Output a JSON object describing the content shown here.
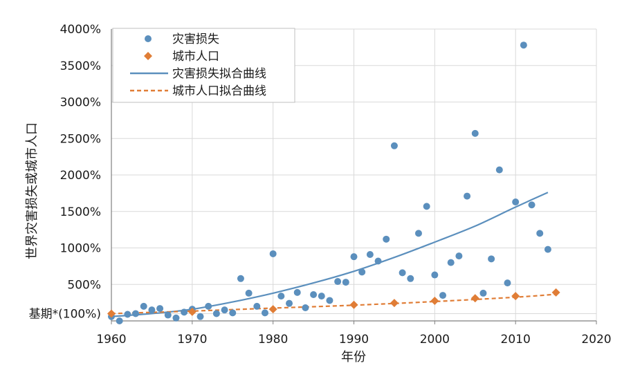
{
  "chart_data": {
    "type": "scatter",
    "title": "",
    "xlabel": "年份",
    "ylabel": "世界灾害损失或城市人口",
    "xlim": [
      1960,
      2020
    ],
    "ylim": [
      0,
      4000
    ],
    "x_ticks": [
      1960,
      1970,
      1980,
      1990,
      2000,
      2010,
      2020
    ],
    "x_tick_labels": [
      "1960",
      "1970",
      "1980",
      "1990",
      "2000",
      "2010",
      "2020"
    ],
    "y_ticks": [
      100,
      500,
      1000,
      1500,
      2000,
      2500,
      3000,
      3500,
      4000
    ],
    "y_tick_labels": [
      "基期*(100%)",
      "500%",
      "1000%",
      "1500%",
      "2000%",
      "2500%",
      "3000%",
      "3500%",
      "4000%"
    ],
    "grid": true,
    "legend_position": "top-left",
    "colors": {
      "disaster": "#5b8fbd",
      "urban": "#e07d36",
      "grid": "#d9d9d9",
      "axis": "#7f7f7f"
    },
    "series": [
      {
        "name": "灾害损失",
        "kind": "scatter",
        "x": [
          1960,
          1961,
          1962,
          1963,
          1964,
          1965,
          1966,
          1967,
          1968,
          1969,
          1970,
          1971,
          1972,
          1973,
          1974,
          1975,
          1976,
          1977,
          1978,
          1979,
          1980,
          1981,
          1982,
          1983,
          1984,
          1985,
          1986,
          1987,
          1988,
          1989,
          1990,
          1991,
          1992,
          1993,
          1994,
          1995,
          1996,
          1997,
          1998,
          1999,
          2000,
          2001,
          2002,
          2003,
          2004,
          2005,
          2006,
          2007,
          2008,
          2009,
          2010,
          2011,
          2012,
          2013,
          2014
        ],
        "values": [
          60,
          0,
          90,
          100,
          200,
          150,
          170,
          80,
          40,
          120,
          160,
          60,
          200,
          100,
          150,
          110,
          580,
          380,
          200,
          110,
          920,
          340,
          240,
          390,
          180,
          360,
          340,
          280,
          540,
          530,
          880,
          670,
          910,
          820,
          1120,
          2400,
          660,
          580,
          1200,
          1570,
          630,
          350,
          800,
          890,
          1710,
          2570,
          380,
          850,
          2070,
          520,
          1630,
          3780,
          1590,
          1200,
          980
        ]
      },
      {
        "name": "城市人口",
        "kind": "scatter",
        "x": [
          1960,
          1970,
          1980,
          1990,
          1995,
          2000,
          2005,
          2010,
          2015
        ],
        "values": [
          100,
          125,
          160,
          220,
          245,
          275,
          310,
          340,
          390
        ]
      },
      {
        "name": "灾害损失拟合曲线",
        "kind": "line",
        "x": [
          1960,
          1965,
          1970,
          1975,
          1980,
          1985,
          1990,
          1995,
          2000,
          2005,
          2010,
          2014
        ],
        "values": [
          60,
          100,
          160,
          260,
          380,
          520,
          680,
          870,
          1080,
          1300,
          1560,
          1760
        ]
      },
      {
        "name": "城市人口拟合曲线",
        "kind": "dashed-line",
        "x": [
          1960,
          1970,
          1980,
          1990,
          2000,
          2010,
          2015
        ],
        "values": [
          100,
          135,
          175,
          215,
          265,
          325,
          365
        ]
      }
    ]
  }
}
